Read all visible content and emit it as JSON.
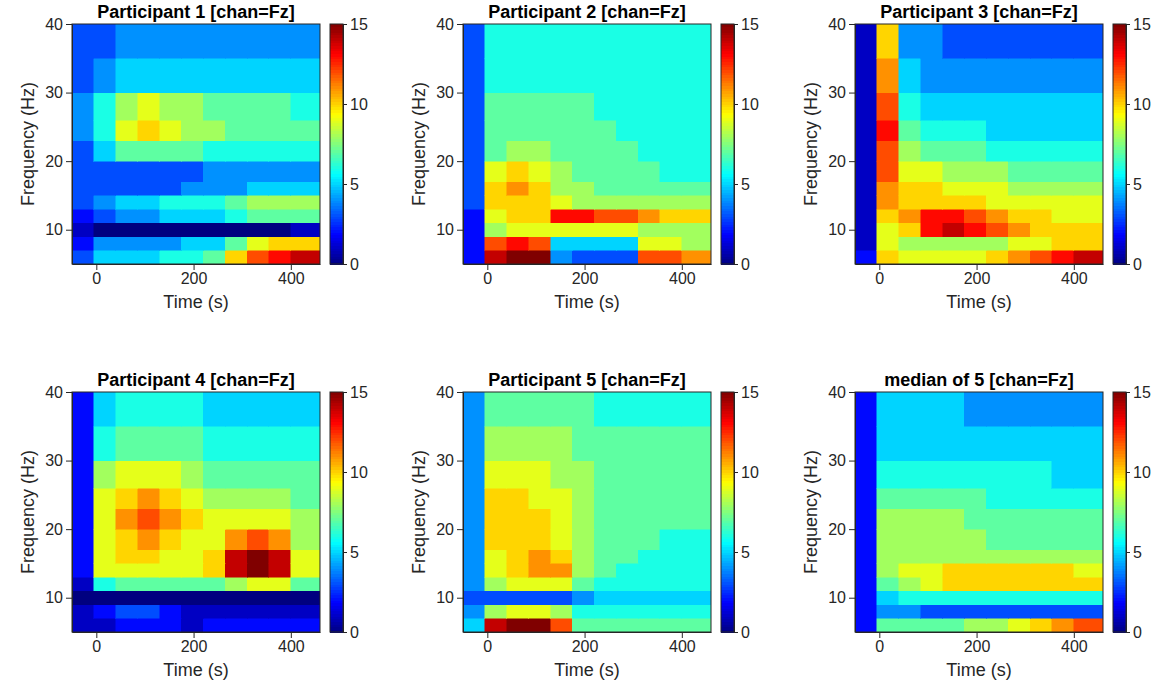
{
  "chart_data": [
    {
      "type": "heatmap",
      "title": "Participant 1 [chan=Fz]",
      "x_label": "Time (s)",
      "y_label": "Frequency (Hz)",
      "x_edges": [
        -50,
        -5,
        40,
        85,
        130,
        175,
        220,
        265,
        310,
        355,
        400,
        460
      ],
      "y_edges": [
        5,
        7,
        9,
        11,
        13,
        15,
        17,
        20,
        23,
        26,
        30,
        35,
        40
      ],
      "values": [
        [
          3,
          5,
          5,
          5,
          6,
          6,
          7,
          10,
          12,
          13,
          14
        ],
        [
          2,
          4,
          4,
          4,
          4,
          5,
          5,
          7,
          9,
          10,
          10
        ],
        [
          1,
          0,
          0,
          0,
          0,
          0,
          0,
          0,
          0,
          0,
          1
        ],
        [
          2,
          3,
          4,
          4,
          5,
          5,
          5,
          6,
          7,
          7,
          7
        ],
        [
          3,
          4,
          5,
          5,
          6,
          6,
          6,
          7,
          8,
          8,
          8
        ],
        [
          3,
          3,
          3,
          3,
          3,
          4,
          4,
          4,
          5,
          5,
          5
        ],
        [
          3,
          3,
          3,
          3,
          3,
          3,
          4,
          4,
          4,
          4,
          4
        ],
        [
          3,
          5,
          7,
          7,
          7,
          7,
          6,
          6,
          6,
          6,
          6
        ],
        [
          4,
          6,
          9,
          10,
          9,
          8,
          8,
          7,
          7,
          7,
          7
        ],
        [
          4,
          6,
          8,
          9,
          8,
          8,
          7,
          7,
          7,
          7,
          6
        ],
        [
          3,
          4,
          5,
          5,
          5,
          5,
          5,
          5,
          5,
          5,
          5
        ],
        [
          3,
          3,
          4,
          4,
          4,
          4,
          4,
          4,
          4,
          4,
          4
        ]
      ],
      "xlim": [
        -50,
        460
      ],
      "ylim": [
        5,
        40
      ],
      "xticks": [
        0,
        200,
        400
      ],
      "yticks": [
        10,
        20,
        30,
        40
      ],
      "colorbar_range": [
        0,
        15
      ],
      "colorbar_ticks": [
        0,
        5,
        10,
        15
      ]
    },
    {
      "type": "heatmap",
      "title": "Participant 2 [chan=Fz]",
      "x_label": "Time (s)",
      "y_label": "Frequency (Hz)",
      "x_edges": [
        -50,
        -5,
        40,
        85,
        130,
        175,
        220,
        265,
        310,
        355,
        400,
        460
      ],
      "y_edges": [
        5,
        7,
        9,
        11,
        13,
        15,
        17,
        20,
        23,
        26,
        30,
        35,
        40
      ],
      "values": [
        [
          2,
          14,
          15,
          15,
          4,
          3,
          3,
          3,
          12,
          12,
          11
        ],
        [
          2,
          12,
          13,
          12,
          5,
          5,
          5,
          5,
          9,
          9,
          8
        ],
        [
          2,
          8,
          9,
          9,
          9,
          9,
          9,
          9,
          8,
          8,
          8
        ],
        [
          2,
          9,
          10,
          10,
          13,
          13,
          12,
          12,
          11,
          10,
          10
        ],
        [
          3,
          10,
          10,
          10,
          9,
          8,
          8,
          8,
          8,
          8,
          8
        ],
        [
          3,
          10,
          11,
          10,
          8,
          8,
          7,
          7,
          7,
          7,
          7
        ],
        [
          3,
          9,
          10,
          9,
          8,
          7,
          7,
          7,
          7,
          6,
          6
        ],
        [
          3,
          7,
          8,
          8,
          7,
          7,
          7,
          7,
          6,
          6,
          6
        ],
        [
          3,
          7,
          7,
          7,
          7,
          7,
          7,
          6,
          6,
          6,
          6
        ],
        [
          3,
          7,
          7,
          7,
          7,
          7,
          6,
          6,
          6,
          6,
          6
        ],
        [
          3,
          6,
          6,
          6,
          6,
          6,
          6,
          6,
          6,
          6,
          6
        ],
        [
          3,
          6,
          6,
          6,
          6,
          6,
          6,
          6,
          6,
          6,
          6
        ]
      ],
      "xlim": [
        -50,
        460
      ],
      "ylim": [
        5,
        40
      ],
      "xticks": [
        0,
        200,
        400
      ],
      "yticks": [
        10,
        20,
        30,
        40
      ],
      "colorbar_range": [
        0,
        15
      ],
      "colorbar_ticks": [
        0,
        5,
        10,
        15
      ]
    },
    {
      "type": "heatmap",
      "title": "Participant 3 [chan=Fz]",
      "x_label": "Time (s)",
      "y_label": "Frequency (Hz)",
      "x_edges": [
        -50,
        -5,
        40,
        85,
        130,
        175,
        220,
        265,
        310,
        355,
        400,
        460
      ],
      "y_edges": [
        5,
        7,
        9,
        11,
        13,
        15,
        17,
        20,
        23,
        26,
        30,
        35,
        40
      ],
      "values": [
        [
          2,
          10,
          9,
          9,
          9,
          9,
          10,
          11,
          12,
          13,
          14
        ],
        [
          1,
          9,
          8,
          8,
          8,
          8,
          8,
          9,
          9,
          10,
          10
        ],
        [
          1,
          9,
          10,
          13,
          14,
          13,
          12,
          11,
          10,
          10,
          10
        ],
        [
          1,
          10,
          11,
          13,
          13,
          12,
          11,
          10,
          10,
          9,
          9
        ],
        [
          1,
          11,
          10,
          10,
          10,
          10,
          9,
          9,
          9,
          9,
          9
        ],
        [
          1,
          11,
          10,
          10,
          9,
          9,
          9,
          8,
          8,
          8,
          8
        ],
        [
          1,
          12,
          9,
          9,
          8,
          8,
          8,
          7,
          7,
          7,
          7
        ],
        [
          1,
          12,
          8,
          7,
          7,
          7,
          6,
          6,
          6,
          6,
          6
        ],
        [
          1,
          13,
          7,
          6,
          6,
          6,
          5,
          5,
          5,
          5,
          5
        ],
        [
          1,
          12,
          6,
          5,
          5,
          5,
          5,
          5,
          5,
          5,
          5
        ],
        [
          1,
          11,
          5,
          4,
          4,
          4,
          4,
          4,
          4,
          4,
          4
        ],
        [
          1,
          10,
          4,
          4,
          3,
          3,
          3,
          3,
          3,
          3,
          3
        ]
      ],
      "xlim": [
        -50,
        460
      ],
      "ylim": [
        5,
        40
      ],
      "xticks": [
        0,
        200,
        400
      ],
      "yticks": [
        10,
        20,
        30,
        40
      ],
      "colorbar_range": [
        0,
        15
      ],
      "colorbar_ticks": [
        0,
        5,
        10,
        15
      ]
    },
    {
      "type": "heatmap",
      "title": "Participant 4 [chan=Fz]",
      "x_label": "Time (s)",
      "y_label": "Frequency (Hz)",
      "x_edges": [
        -50,
        -5,
        40,
        85,
        130,
        175,
        220,
        265,
        310,
        355,
        400,
        460
      ],
      "y_edges": [
        5,
        7,
        9,
        11,
        13,
        15,
        17,
        20,
        23,
        26,
        30,
        35,
        40
      ],
      "values": [
        [
          1,
          1,
          2,
          2,
          2,
          1,
          2,
          2,
          2,
          2,
          2
        ],
        [
          1,
          2,
          3,
          3,
          2,
          1,
          1,
          1,
          1,
          1,
          1
        ],
        [
          0,
          0,
          0,
          0,
          0,
          0,
          0,
          0,
          0,
          0,
          0
        ],
        [
          1,
          6,
          7,
          7,
          7,
          7,
          7,
          8,
          9,
          9,
          7
        ],
        [
          2,
          9,
          9,
          9,
          9,
          9,
          10,
          14,
          15,
          14,
          9
        ],
        [
          2,
          9,
          10,
          10,
          9,
          9,
          10,
          14,
          15,
          14,
          9
        ],
        [
          2,
          9,
          10,
          11,
          10,
          9,
          9,
          11,
          12,
          11,
          8
        ],
        [
          2,
          9,
          11,
          12,
          11,
          10,
          9,
          9,
          9,
          9,
          8
        ],
        [
          2,
          9,
          10,
          11,
          10,
          9,
          8,
          8,
          8,
          8,
          7
        ],
        [
          2,
          8,
          9,
          9,
          9,
          8,
          7,
          7,
          7,
          7,
          7
        ],
        [
          2,
          6,
          7,
          7,
          7,
          7,
          6,
          6,
          6,
          6,
          6
        ],
        [
          2,
          5,
          6,
          6,
          6,
          6,
          5,
          5,
          5,
          5,
          5
        ]
      ],
      "xlim": [
        -50,
        460
      ],
      "ylim": [
        5,
        40
      ],
      "xticks": [
        0,
        200,
        400
      ],
      "yticks": [
        10,
        20,
        30,
        40
      ],
      "colorbar_range": [
        0,
        15
      ],
      "colorbar_ticks": [
        0,
        5,
        10,
        15
      ]
    },
    {
      "type": "heatmap",
      "title": "Participant 5 [chan=Fz]",
      "x_label": "Time (s)",
      "y_label": "Frequency (Hz)",
      "x_edges": [
        -50,
        -5,
        40,
        85,
        130,
        175,
        220,
        265,
        310,
        355,
        400,
        460
      ],
      "y_edges": [
        5,
        7,
        9,
        11,
        13,
        15,
        17,
        20,
        23,
        26,
        30,
        35,
        40
      ],
      "values": [
        [
          5,
          14,
          15,
          15,
          12,
          7,
          7,
          7,
          7,
          7,
          7
        ],
        [
          4,
          8,
          9,
          9,
          8,
          6,
          6,
          6,
          6,
          6,
          6
        ],
        [
          3,
          3,
          3,
          3,
          3,
          4,
          5,
          5,
          5,
          5,
          5
        ],
        [
          4,
          8,
          9,
          9,
          9,
          7,
          6,
          6,
          6,
          6,
          6
        ],
        [
          4,
          9,
          10,
          11,
          11,
          8,
          7,
          6,
          6,
          6,
          6
        ],
        [
          4,
          9,
          10,
          11,
          10,
          8,
          7,
          7,
          6,
          6,
          6
        ],
        [
          4,
          10,
          10,
          10,
          9,
          8,
          7,
          7,
          7,
          6,
          6
        ],
        [
          4,
          10,
          10,
          10,
          9,
          8,
          7,
          7,
          7,
          7,
          7
        ],
        [
          4,
          10,
          10,
          9,
          9,
          8,
          7,
          7,
          7,
          7,
          7
        ],
        [
          4,
          9,
          9,
          9,
          8,
          8,
          7,
          7,
          7,
          7,
          7
        ],
        [
          4,
          8,
          8,
          8,
          8,
          7,
          7,
          7,
          7,
          7,
          7
        ],
        [
          4,
          7,
          7,
          7,
          7,
          7,
          6,
          6,
          6,
          6,
          6
        ]
      ],
      "xlim": [
        -50,
        460
      ],
      "ylim": [
        5,
        40
      ],
      "xticks": [
        0,
        200,
        400
      ],
      "yticks": [
        10,
        20,
        30,
        40
      ],
      "colorbar_range": [
        0,
        15
      ],
      "colorbar_ticks": [
        0,
        5,
        10,
        15
      ]
    },
    {
      "type": "heatmap",
      "title": "median of 5 [chan=Fz]",
      "x_label": "Time (s)",
      "y_label": "Frequency (Hz)",
      "x_edges": [
        -50,
        -5,
        40,
        85,
        130,
        175,
        220,
        265,
        310,
        355,
        400,
        460
      ],
      "y_edges": [
        5,
        7,
        9,
        11,
        13,
        15,
        17,
        20,
        23,
        26,
        30,
        35,
        40
      ],
      "values": [
        [
          2,
          7,
          7,
          7,
          7,
          8,
          8,
          9,
          10,
          11,
          12
        ],
        [
          2,
          4,
          4,
          3,
          3,
          3,
          3,
          3,
          3,
          3,
          3
        ],
        [
          2,
          5,
          6,
          6,
          6,
          6,
          6,
          6,
          6,
          6,
          6
        ],
        [
          2,
          7,
          8,
          9,
          10,
          10,
          10,
          10,
          10,
          10,
          10
        ],
        [
          2,
          8,
          9,
          9,
          10,
          10,
          10,
          10,
          10,
          10,
          9
        ],
        [
          2,
          8,
          8,
          8,
          8,
          8,
          8,
          8,
          8,
          8,
          8
        ],
        [
          2,
          8,
          8,
          8,
          8,
          8,
          7,
          7,
          7,
          7,
          7
        ],
        [
          2,
          8,
          8,
          8,
          8,
          7,
          7,
          7,
          7,
          7,
          7
        ],
        [
          2,
          7,
          7,
          7,
          7,
          7,
          6,
          6,
          6,
          6,
          6
        ],
        [
          2,
          6,
          6,
          6,
          6,
          6,
          6,
          6,
          6,
          5,
          5
        ],
        [
          2,
          5,
          5,
          5,
          5,
          5,
          5,
          5,
          5,
          5,
          5
        ],
        [
          2,
          5,
          5,
          5,
          5,
          4,
          4,
          4,
          4,
          4,
          4
        ]
      ],
      "xlim": [
        -50,
        460
      ],
      "ylim": [
        5,
        40
      ],
      "xticks": [
        0,
        200,
        400
      ],
      "yticks": [
        10,
        20,
        30,
        40
      ],
      "colorbar_range": [
        0,
        15
      ],
      "colorbar_ticks": [
        0,
        5,
        10,
        15
      ]
    }
  ]
}
